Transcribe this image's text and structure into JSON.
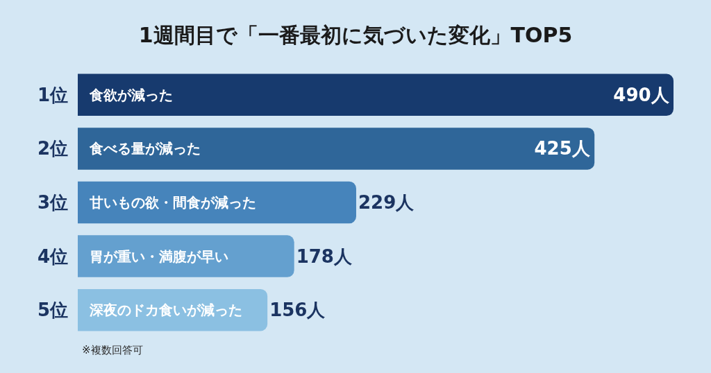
{
  "chart_data": {
    "type": "bar",
    "orientation": "horizontal",
    "title": "1週間目で「一番最初に気づいた変化」TOP5",
    "categories": [
      "食欲が減った",
      "食べる量が減った",
      "甘いもの欲・間食が減った",
      "胃が重い・満腹が早い",
      "深夜のドカ食いが減った"
    ],
    "values": [
      490,
      425,
      229,
      178,
      156
    ],
    "colors": [
      "#173a6e",
      "#2f6699",
      "#4684bb",
      "#64a0cf",
      "#8bc0e2"
    ],
    "value_labels": [
      "490人",
      "425人",
      "229人",
      "178人",
      "156人"
    ],
    "tick_labels": "y",
    "annotations": [
      "1位",
      "2位",
      "3位",
      "4位",
      "5位",
      "※複数回答可"
    ]
  }
}
